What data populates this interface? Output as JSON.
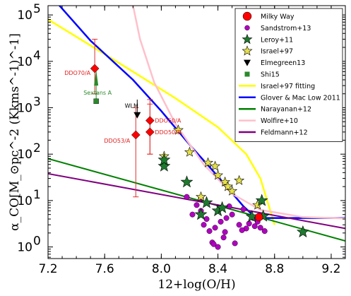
{
  "chart_data": {
    "type": "scatter",
    "x_ticks": [
      "7.2",
      "7.6",
      "8.0",
      "8.4",
      "8.8",
      "9.2"
    ],
    "y_ticks": [
      "10",
      "10",
      "10",
      "10",
      "10",
      "10"
    ],
    "y_tick_exponents": [
      "0",
      "1",
      "2",
      "3",
      "4",
      "5"
    ],
    "xlim": [
      7.2,
      9.3
    ],
    "ylim_log10": [
      -0.25,
      5.2
    ],
    "xlabel": "12+log(O/H)",
    "ylabel": "α_CO[M_⊙pc^-2 (Kkms^-1)^-1]",
    "yscale": "log",
    "legend_position": "top-right",
    "legend": [
      {
        "name": "Milky Way",
        "marker": "circle-big",
        "color": "#ff0000"
      },
      {
        "name": "Sandstrom+13",
        "marker": "circle-small",
        "color": "#b000c0"
      },
      {
        "name": "Leroy+11",
        "marker": "star",
        "color": "#1e7a2e"
      },
      {
        "name": "Israel+97",
        "marker": "star",
        "color": "#e5e04a"
      },
      {
        "name": "Elmegreen13",
        "marker": "triangle-down",
        "color": "#000000"
      },
      {
        "name": "Shi15",
        "marker": "square",
        "color": "#2a8a2a"
      },
      {
        "name": "Israel+97 fitting",
        "marker": "line",
        "color": "#ffff00"
      },
      {
        "name": "Glover & Mac Low 2011",
        "marker": "line",
        "color": "#0000ff"
      },
      {
        "name": "Narayanan+12",
        "marker": "line",
        "color": "#008000"
      },
      {
        "name": "Wolfire+10",
        "marker": "line",
        "color": "#ffc0cb"
      },
      {
        "name": "Feldmann+12",
        "marker": "line",
        "color": "#800080"
      }
    ],
    "lines": [
      {
        "name": "Israel+97 fitting",
        "color": "#ffff00",
        "width": 2.5,
        "points": [
          [
            7.2,
            80000
          ],
          [
            7.5,
            22000
          ],
          [
            7.8,
            6000
          ],
          [
            8.1,
            1600
          ],
          [
            8.4,
            380
          ],
          [
            8.6,
            100
          ],
          [
            8.7,
            30
          ],
          [
            8.8,
            3
          ]
        ]
      },
      {
        "name": "Glover & Mac Low 2011",
        "color": "#0000ff",
        "width": 2.5,
        "points": [
          [
            7.28,
            160000
          ],
          [
            7.5,
            28000
          ],
          [
            7.8,
            4000
          ],
          [
            8.0,
            850
          ],
          [
            8.2,
            160
          ],
          [
            8.4,
            33
          ],
          [
            8.58,
            7.5
          ],
          [
            8.67,
            4.2
          ],
          [
            9.3,
            4.2
          ]
        ]
      },
      {
        "name": "Narayanan+12",
        "color": "#008000",
        "width": 2,
        "points": [
          [
            7.2,
            80
          ],
          [
            9.3,
            1.35
          ]
        ]
      },
      {
        "name": "Wolfire+10",
        "color": "#ffc0cb",
        "width": 2.5,
        "points": [
          [
            7.8,
            160000
          ],
          [
            7.85,
            30000
          ],
          [
            7.95,
            3500
          ],
          [
            8.1,
            450
          ],
          [
            8.3,
            60
          ],
          [
            8.5,
            14
          ],
          [
            8.7,
            6.3
          ],
          [
            9.0,
            4.4
          ],
          [
            9.3,
            4.1
          ]
        ]
      },
      {
        "name": "Feldmann+12",
        "color": "#800080",
        "width": 2,
        "points": [
          [
            7.2,
            38
          ],
          [
            9.3,
            2.5
          ]
        ]
      }
    ],
    "points": {
      "sandstrom": [
        [
          8.18,
          12
        ],
        [
          8.22,
          5
        ],
        [
          8.25,
          8
        ],
        [
          8.28,
          6
        ],
        [
          8.3,
          3
        ],
        [
          8.32,
          4
        ],
        [
          8.34,
          2.2
        ],
        [
          8.36,
          1.25
        ],
        [
          8.37,
          1.15
        ],
        [
          8.4,
          1.0
        ],
        [
          8.42,
          3.5
        ],
        [
          8.45,
          2.1
        ],
        [
          8.48,
          7.5
        ],
        [
          8.5,
          5
        ],
        [
          8.52,
          1.2
        ],
        [
          8.55,
          3
        ],
        [
          8.58,
          6.5
        ],
        [
          8.6,
          2.5
        ],
        [
          8.62,
          3.2
        ],
        [
          8.65,
          4.2
        ],
        [
          8.66,
          2.8
        ],
        [
          8.68,
          3.5
        ],
        [
          8.7,
          2.6
        ],
        [
          8.73,
          2.2
        ],
        [
          8.38,
          2.6
        ],
        [
          8.46,
          4.2
        ],
        [
          8.57,
          2.3
        ],
        [
          8.28,
          11
        ],
        [
          8.44,
          1.6
        ]
      ],
      "leroy": [
        [
          8.02,
          55
        ],
        [
          8.02,
          75
        ],
        [
          8.18,
          25
        ],
        [
          8.28,
          5
        ],
        [
          8.32,
          9
        ],
        [
          8.4,
          6
        ],
        [
          8.43,
          7
        ],
        [
          8.64,
          4.5
        ],
        [
          8.71,
          10
        ],
        [
          8.72,
          4.6
        ],
        [
          9.0,
          2.1
        ]
      ],
      "israel": [
        [
          8.02,
          90
        ],
        [
          8.12,
          330
        ],
        [
          8.2,
          110
        ],
        [
          8.33,
          65
        ],
        [
          8.38,
          55
        ],
        [
          8.4,
          35
        ],
        [
          8.45,
          25
        ],
        [
          8.47,
          20
        ],
        [
          8.5,
          16
        ],
        [
          8.55,
          27
        ],
        [
          8.28,
          12
        ],
        [
          8.68,
          8
        ]
      ],
      "milky_way": [
        8.69,
        4.4
      ],
      "elmegreen": [
        [
          7.83,
          700
        ]
      ],
      "shi15": [
        [
          7.54,
          1380
        ]
      ],
      "ddo_galaxies": [
        {
          "label": "DDO70/A",
          "x": 7.53,
          "y": 7000,
          "lo": 2000,
          "hi": 30000
        },
        {
          "label": "DDO50/A",
          "x": 7.92,
          "y": 530,
          "lo": 100,
          "hi": 1500
        },
        {
          "label": "DDO50/B",
          "x": 7.92,
          "y": 300,
          "lo": 100,
          "hi": 1200
        },
        {
          "label": "DDO53/A",
          "x": 7.82,
          "y": 260,
          "lo": 12,
          "hi": 1000
        }
      ],
      "sextans_a": {
        "label": "Sextans A",
        "x": 7.55,
        "y": 2500
      },
      "wlm": {
        "label": "WLM",
        "x": 7.83,
        "y": 800
      }
    }
  }
}
